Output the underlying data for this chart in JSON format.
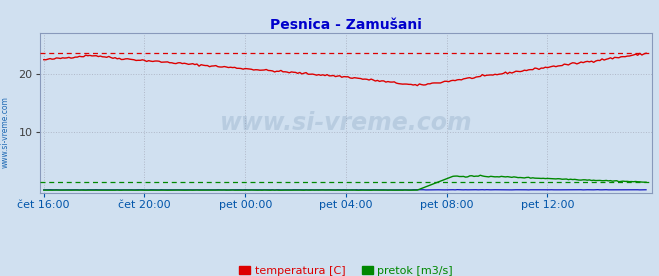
{
  "title": "Pesnica - Zamušani",
  "title_color": "#0000cc",
  "bg_color": "#d0e0f0",
  "plot_bg_color": "#d0e0f0",
  "grid_color": "#b0b8c8",
  "xlabel_color": "#0055aa",
  "ylabel_color": "#404040",
  "watermark_text": "www.si-vreme.com",
  "watermark_color": "#6688aa",
  "watermark_alpha": 0.22,
  "sidebar_text": "www.si-vreme.com",
  "sidebar_color": "#0055aa",
  "n_points": 288,
  "ylim": [
    -0.5,
    27
  ],
  "yticks": [
    10,
    20
  ],
  "temp_color": "#dd0000",
  "flow_color": "#008800",
  "height_color": "#0000bb",
  "temp_max_dashed": 23.6,
  "flow_avg_dashed": 1.5,
  "tick_labels": [
    "čet 16:00",
    "čet 20:00",
    "pet 00:00",
    "pet 04:00",
    "pet 08:00",
    "pet 12:00"
  ],
  "tick_positions": [
    0,
    48,
    96,
    144,
    192,
    240
  ],
  "legend_labels": [
    "temperatura [C]",
    "pretok [m3/s]"
  ],
  "legend_colors": [
    "#dd0000",
    "#008800"
  ],
  "figsize": [
    6.59,
    2.76
  ],
  "dpi": 100
}
